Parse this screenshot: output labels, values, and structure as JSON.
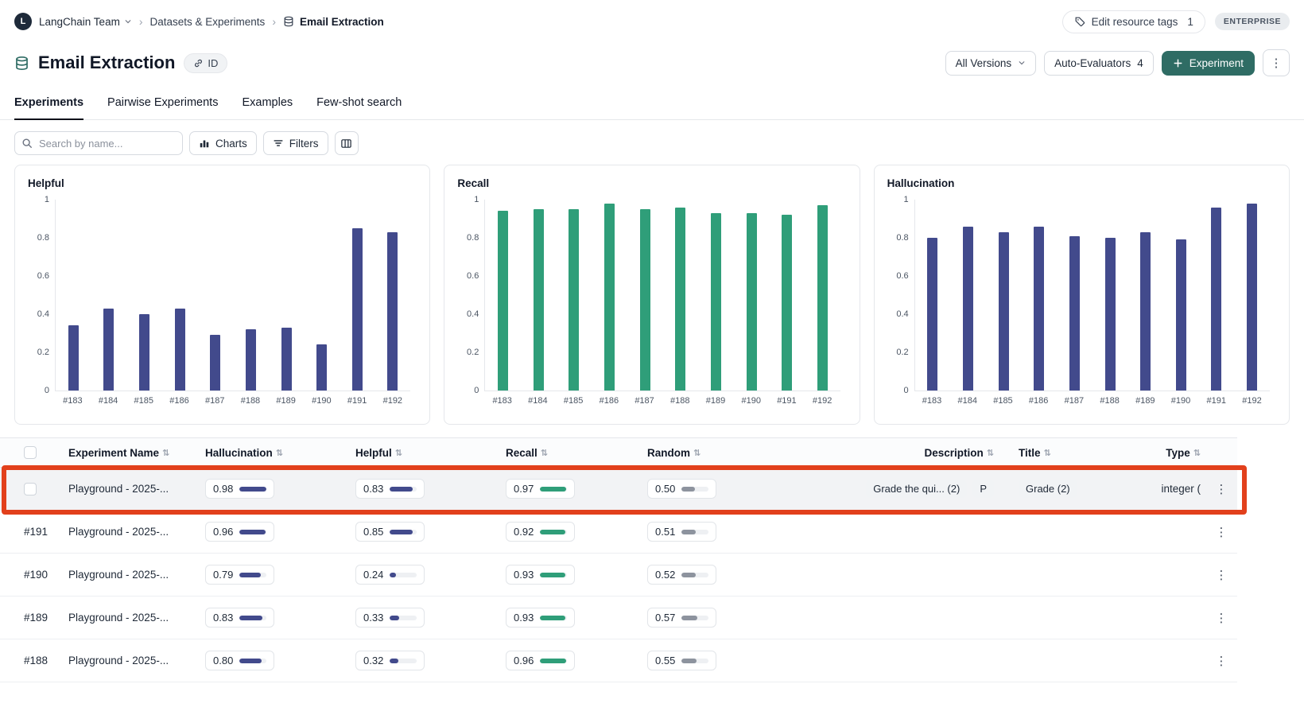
{
  "colors": {
    "navy": "#424a8c",
    "green": "#2f9e79",
    "gray": "#8d939e",
    "accent": "#2f6c64",
    "highlight": "#e2401c"
  },
  "topbar": {
    "team_initial": "L",
    "team_name": "LangChain Team",
    "breadcrumb_section": "Datasets & Experiments",
    "breadcrumb_page": "Email Extraction",
    "edit_tags_label": "Edit resource tags",
    "edit_tags_count": "1",
    "plan_badge": "ENTERPRISE"
  },
  "header": {
    "title": "Email Extraction",
    "id_label": "ID",
    "versions_label": "All Versions",
    "auto_evaluators_label": "Auto-Evaluators",
    "auto_evaluators_count": "4",
    "new_experiment_label": "Experiment"
  },
  "tabs": [
    {
      "label": "Experiments",
      "active": true
    },
    {
      "label": "Pairwise Experiments",
      "active": false
    },
    {
      "label": "Examples",
      "active": false
    },
    {
      "label": "Few-shot search",
      "active": false
    }
  ],
  "toolbar": {
    "search_placeholder": "Search by name...",
    "charts_label": "Charts",
    "filters_label": "Filters"
  },
  "chart_data": [
    {
      "type": "bar",
      "title": "Helpful",
      "categories": [
        "#183",
        "#184",
        "#185",
        "#186",
        "#187",
        "#188",
        "#189",
        "#190",
        "#191",
        "#192"
      ],
      "values": [
        0.34,
        0.43,
        0.4,
        0.43,
        0.29,
        0.32,
        0.33,
        0.24,
        0.85,
        0.83
      ],
      "ylim": [
        0,
        1
      ],
      "yticks": [
        "1",
        "0.8",
        "0.6",
        "0.4",
        "0.2",
        "0"
      ],
      "color": "#424a8c",
      "grid": false,
      "legend": false
    },
    {
      "type": "bar",
      "title": "Recall",
      "categories": [
        "#183",
        "#184",
        "#185",
        "#186",
        "#187",
        "#188",
        "#189",
        "#190",
        "#191",
        "#192"
      ],
      "values": [
        0.94,
        0.95,
        0.95,
        0.98,
        0.95,
        0.96,
        0.93,
        0.93,
        0.92,
        0.97
      ],
      "ylim": [
        0,
        1
      ],
      "yticks": [
        "1",
        "0.8",
        "0.6",
        "0.4",
        "0.2",
        "0"
      ],
      "color": "#2f9e79",
      "grid": false,
      "legend": false
    },
    {
      "type": "bar",
      "title": "Hallucination",
      "categories": [
        "#183",
        "#184",
        "#185",
        "#186",
        "#187",
        "#188",
        "#189",
        "#190",
        "#191",
        "#192"
      ],
      "values": [
        0.8,
        0.86,
        0.83,
        0.86,
        0.81,
        0.8,
        0.83,
        0.79,
        0.96,
        0.98
      ],
      "ylim": [
        0,
        1
      ],
      "yticks": [
        "1",
        "0.8",
        "0.6",
        "0.4",
        "0.2",
        "0"
      ],
      "color": "#424a8c",
      "grid": false,
      "legend": false
    }
  ],
  "table": {
    "columns": [
      "Experiment Name",
      "Hallucination",
      "Helpful",
      "Recall",
      "Random",
      "Description",
      "Title",
      "Type"
    ],
    "rows": [
      {
        "id": "",
        "checkbox": true,
        "highlighted": true,
        "name": "Playground - 2025-...",
        "hallucination": "0.98",
        "helpful": "0.83",
        "recall": "0.97",
        "random": "0.50",
        "description": "Grade the qui... (2)",
        "description_badge": "P",
        "title": "Grade (2)",
        "type": "integer ("
      },
      {
        "id": "#191",
        "checkbox": false,
        "highlighted": false,
        "name": "Playground - 2025-...",
        "hallucination": "0.96",
        "helpful": "0.85",
        "recall": "0.92",
        "random": "0.51",
        "description": "",
        "description_badge": "",
        "title": "",
        "type": ""
      },
      {
        "id": "#190",
        "checkbox": false,
        "highlighted": false,
        "name": "Playground - 2025-...",
        "hallucination": "0.79",
        "helpful": "0.24",
        "recall": "0.93",
        "random": "0.52",
        "description": "",
        "description_badge": "",
        "title": "",
        "type": ""
      },
      {
        "id": "#189",
        "checkbox": false,
        "highlighted": false,
        "name": "Playground - 2025-...",
        "hallucination": "0.83",
        "helpful": "0.33",
        "recall": "0.93",
        "random": "0.57",
        "description": "",
        "description_badge": "",
        "title": "",
        "type": ""
      },
      {
        "id": "#188",
        "checkbox": false,
        "highlighted": false,
        "name": "Playground - 2025-...",
        "hallucination": "0.80",
        "helpful": "0.32",
        "recall": "0.96",
        "random": "0.55",
        "description": "",
        "description_badge": "",
        "title": "",
        "type": ""
      }
    ]
  }
}
